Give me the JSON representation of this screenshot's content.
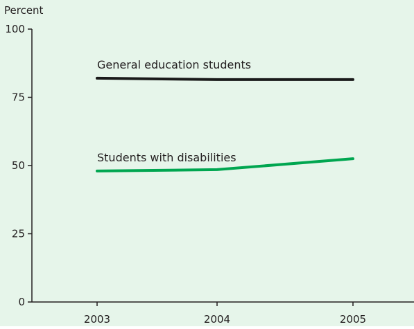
{
  "chart_data": {
    "type": "line",
    "title": "",
    "ylabel": "Percent",
    "xlabel": "",
    "x": [
      "2003",
      "2004",
      "2005"
    ],
    "ylim": [
      0,
      100
    ],
    "yticks": [
      0,
      25,
      50,
      75,
      100
    ],
    "grid": false,
    "legend": "inline labels above lines",
    "series": [
      {
        "name": "General education students",
        "values": [
          82,
          81.5,
          81.5
        ],
        "color": "#1a1a1a"
      },
      {
        "name": "Students with disabilities",
        "values": [
          48,
          48.5,
          52.5
        ],
        "color": "#00a650"
      }
    ]
  },
  "colors": {
    "plot_background": "#e6f5ea",
    "axis": "#231f20"
  }
}
